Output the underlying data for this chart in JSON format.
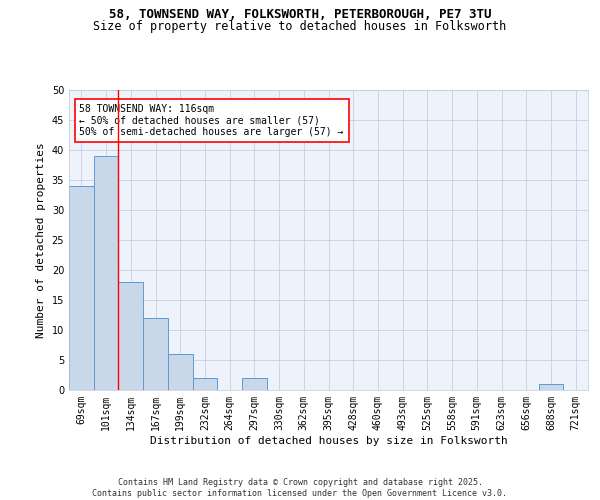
{
  "title_line1": "58, TOWNSEND WAY, FOLKSWORTH, PETERBOROUGH, PE7 3TU",
  "title_line2": "Size of property relative to detached houses in Folksworth",
  "xlabel": "Distribution of detached houses by size in Folksworth",
  "ylabel": "Number of detached properties",
  "categories": [
    "69sqm",
    "101sqm",
    "134sqm",
    "167sqm",
    "199sqm",
    "232sqm",
    "264sqm",
    "297sqm",
    "330sqm",
    "362sqm",
    "395sqm",
    "428sqm",
    "460sqm",
    "493sqm",
    "525sqm",
    "558sqm",
    "591sqm",
    "623sqm",
    "656sqm",
    "688sqm",
    "721sqm"
  ],
  "values": [
    34,
    39,
    18,
    12,
    6,
    2,
    0,
    2,
    0,
    0,
    0,
    0,
    0,
    0,
    0,
    0,
    0,
    0,
    0,
    1,
    0
  ],
  "bar_color": "#c8d8e8",
  "bar_edge_color": "#5b9bd5",
  "red_line_x": 1.5,
  "ylim": [
    0,
    50
  ],
  "yticks": [
    0,
    5,
    10,
    15,
    20,
    25,
    30,
    35,
    40,
    45,
    50
  ],
  "annotation_box_text": "58 TOWNSEND WAY: 116sqm\n← 50% of detached houses are smaller (57)\n50% of semi-detached houses are larger (57) →",
  "footer_text": "Contains HM Land Registry data © Crown copyright and database right 2025.\nContains public sector information licensed under the Open Government Licence v3.0.",
  "background_color": "#eef2fb",
  "grid_color": "#c0c8e0",
  "title_fontsize": 9,
  "subtitle_fontsize": 8.5,
  "axis_label_fontsize": 8,
  "tick_fontsize": 7,
  "annotation_fontsize": 7,
  "footer_fontsize": 6
}
